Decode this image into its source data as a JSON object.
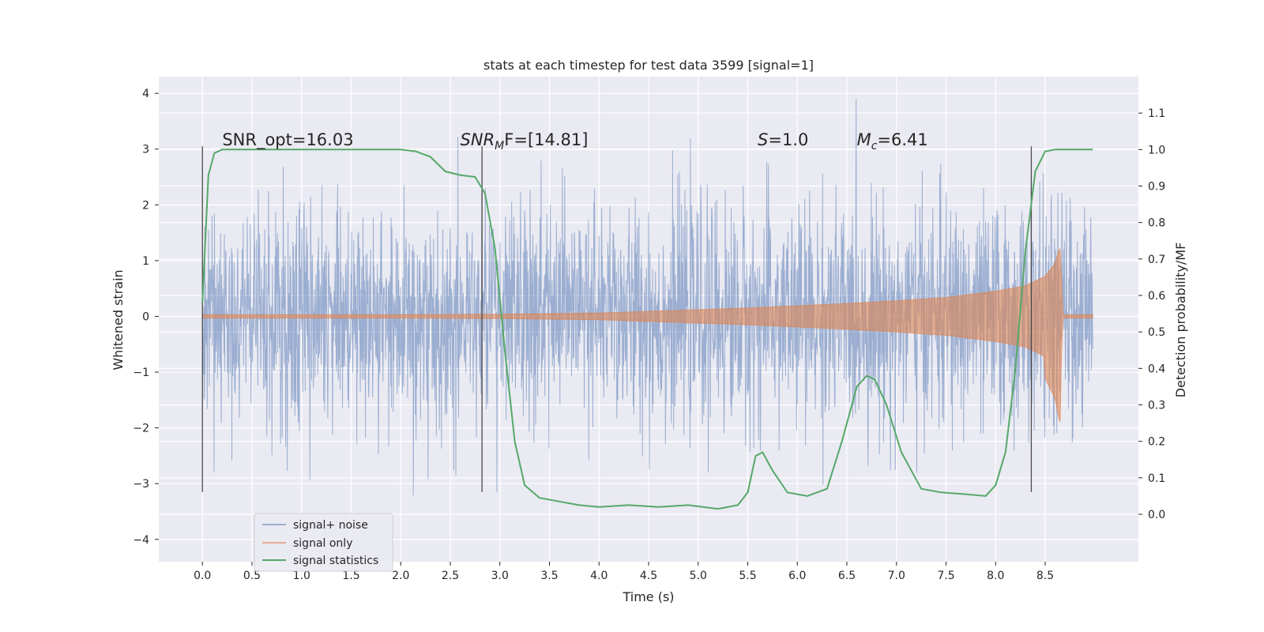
{
  "chart_data": {
    "type": "line",
    "title": "stats at each timestep for test data 3599 [signal=1]",
    "xlabel": "Time (s)",
    "ylabel": "Whitened strain",
    "y2label": "Detection probability/MF",
    "xlim": [
      -0.44,
      9.44
    ],
    "ylim": [
      -4.4,
      4.3
    ],
    "y2lim": [
      -0.13,
      1.2
    ],
    "xticks": [
      "0.0",
      "0.5",
      "1.0",
      "1.5",
      "2.0",
      "2.5",
      "3.0",
      "3.5",
      "4.0",
      "4.5",
      "5.0",
      "5.5",
      "6.0",
      "6.5",
      "7.0",
      "7.5",
      "8.0",
      "8.5"
    ],
    "yticks": [
      "4",
      "3",
      "2",
      "1",
      "0",
      "−1",
      "−2",
      "−3",
      "−4"
    ],
    "y2ticks": [
      "1.1",
      "1.0",
      "0.9",
      "0.8",
      "0.7",
      "0.6",
      "0.5",
      "0.4",
      "0.3",
      "0.2",
      "0.1",
      "0.0"
    ],
    "grid": true,
    "legend_position": "lower-left",
    "annotations": [
      {
        "text": "SNR_opt=16.03",
        "x": 0.2
      },
      {
        "text": "SNR_MF=[14.81]",
        "base": "SNR",
        "sub": "M",
        "tail": "F=[14.81]",
        "x": 2.6
      },
      {
        "text": "S=1.0",
        "base": "S",
        "tail": "=1.0",
        "x": 5.6
      },
      {
        "text": "M_c=6.41",
        "base": "M",
        "sub": "c",
        "tail": "=6.41",
        "x": 6.6
      }
    ],
    "vlines": [
      0.0,
      2.82,
      8.36
    ],
    "series": [
      {
        "name": "signal+ noise",
        "color": "#4c72b0",
        "x_range": [
          0.0,
          8.98
        ],
        "noise_sigma": 1.0,
        "peak_range": [
          -4.0,
          3.9
        ]
      },
      {
        "name": "signal only",
        "color": "#dd8452",
        "x": [
          0.0,
          1.0,
          2.0,
          3.0,
          4.0,
          4.5,
          5.0,
          5.5,
          6.0,
          6.5,
          7.0,
          7.5,
          8.0,
          8.3,
          8.5,
          8.6,
          8.65,
          8.68,
          8.98
        ],
        "envelope": [
          0.03,
          0.03,
          0.03,
          0.04,
          0.06,
          0.09,
          0.12,
          0.15,
          0.19,
          0.23,
          0.28,
          0.34,
          0.45,
          0.55,
          0.72,
          0.95,
          1.25,
          0.03,
          0.03
        ]
      },
      {
        "name": "signal statistics",
        "color": "#55a868",
        "axis": "right",
        "x": [
          0.0,
          0.06,
          0.12,
          0.2,
          0.5,
          1.0,
          1.5,
          2.0,
          2.15,
          2.3,
          2.45,
          2.6,
          2.75,
          2.85,
          2.95,
          3.05,
          3.15,
          3.25,
          3.4,
          3.6,
          3.8,
          4.0,
          4.3,
          4.6,
          4.9,
          5.2,
          5.4,
          5.5,
          5.58,
          5.65,
          5.75,
          5.9,
          6.1,
          6.3,
          6.45,
          6.6,
          6.7,
          6.78,
          6.9,
          7.05,
          7.25,
          7.45,
          7.7,
          7.9,
          8.0,
          8.1,
          8.2,
          8.3,
          8.4,
          8.5,
          8.6,
          8.98
        ],
        "y": [
          0.58,
          0.93,
          0.99,
          1.0,
          1.0,
          1.0,
          1.0,
          1.0,
          0.995,
          0.98,
          0.94,
          0.93,
          0.925,
          0.88,
          0.73,
          0.45,
          0.2,
          0.08,
          0.045,
          0.035,
          0.025,
          0.02,
          0.025,
          0.02,
          0.025,
          0.015,
          0.025,
          0.06,
          0.16,
          0.17,
          0.12,
          0.06,
          0.05,
          0.07,
          0.2,
          0.35,
          0.38,
          0.37,
          0.3,
          0.17,
          0.07,
          0.06,
          0.055,
          0.05,
          0.08,
          0.17,
          0.4,
          0.72,
          0.94,
          0.995,
          1.0,
          1.0
        ]
      }
    ]
  }
}
